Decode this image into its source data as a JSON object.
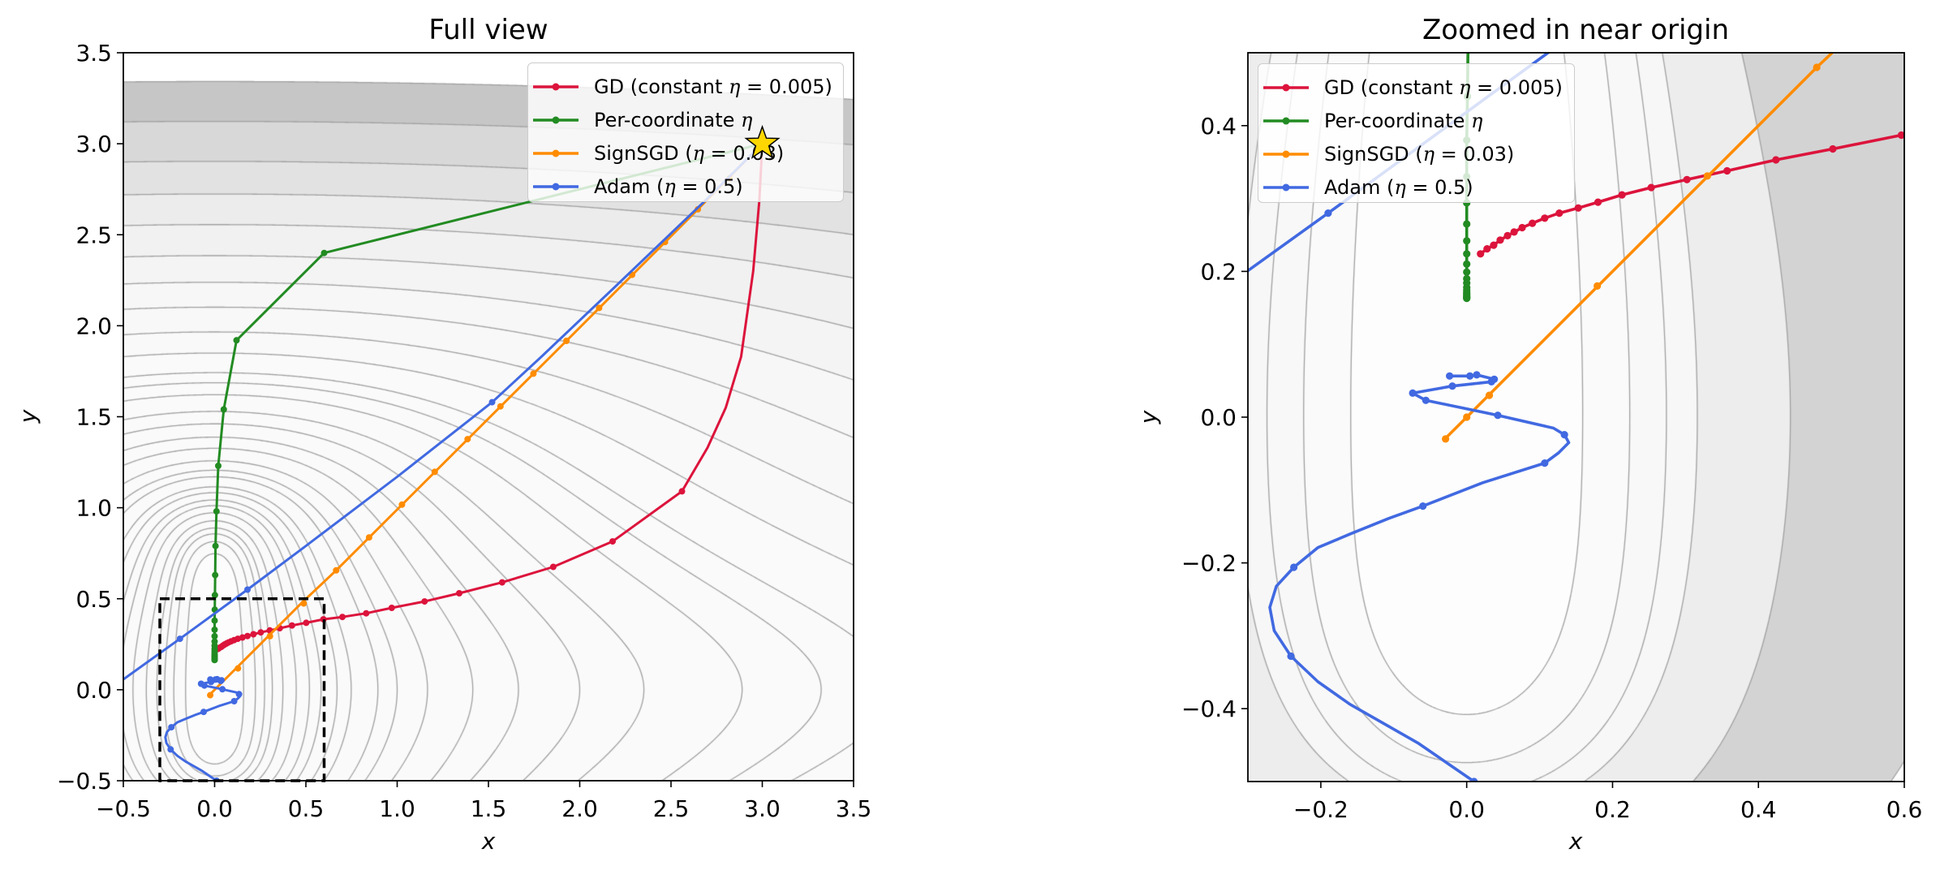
{
  "chart_data": {
    "type": "line",
    "start_point": {
      "x": 3,
      "y": 3,
      "marker": "star",
      "color": "#ffd700",
      "edge_color": "#000000"
    },
    "series": [
      {
        "id": "gd",
        "name": "GD (constant η = 0.005)",
        "color": "#dc143c",
        "path": [
          [
            3,
            3
          ],
          [
            2.984,
            2.69
          ],
          [
            2.95,
            2.3
          ],
          [
            2.884,
            1.83
          ],
          [
            2.8,
            1.55
          ],
          [
            2.7,
            1.33
          ],
          [
            2.56,
            1.09
          ],
          [
            2.18,
            0.815
          ],
          [
            1.855,
            0.675
          ],
          [
            1.575,
            0.59
          ],
          [
            1.34,
            0.53
          ],
          [
            1.15,
            0.485
          ],
          [
            0.97,
            0.45
          ],
          [
            0.83,
            0.42
          ],
          [
            0.7,
            0.4
          ],
          [
            0.596,
            0.387
          ],
          [
            0.502,
            0.368
          ],
          [
            0.424,
            0.353
          ],
          [
            0.357,
            0.338
          ],
          [
            0.302,
            0.326
          ],
          [
            0.253,
            0.315
          ],
          [
            0.213,
            0.305
          ],
          [
            0.18,
            0.295
          ],
          [
            0.153,
            0.287
          ],
          [
            0.127,
            0.28
          ],
          [
            0.107,
            0.273
          ],
          [
            0.09,
            0.266
          ],
          [
            0.076,
            0.26
          ],
          [
            0.065,
            0.254
          ],
          [
            0.056,
            0.249
          ],
          [
            0.046,
            0.243
          ],
          [
            0.037,
            0.236
          ],
          [
            0.028,
            0.231
          ],
          [
            0.019,
            0.224
          ]
        ],
        "markers": [
          [
            2.56,
            1.09
          ],
          [
            2.18,
            0.815
          ],
          [
            1.855,
            0.675
          ],
          [
            1.575,
            0.59
          ],
          [
            1.34,
            0.53
          ],
          [
            1.15,
            0.485
          ],
          [
            0.97,
            0.45
          ],
          [
            0.83,
            0.42
          ],
          [
            0.7,
            0.4
          ],
          [
            0.596,
            0.387
          ],
          [
            0.502,
            0.368
          ],
          [
            0.424,
            0.353
          ],
          [
            0.357,
            0.338
          ],
          [
            0.302,
            0.326
          ],
          [
            0.253,
            0.315
          ],
          [
            0.213,
            0.305
          ],
          [
            0.18,
            0.295
          ],
          [
            0.153,
            0.287
          ],
          [
            0.127,
            0.28
          ],
          [
            0.107,
            0.273
          ],
          [
            0.09,
            0.266
          ],
          [
            0.076,
            0.26
          ],
          [
            0.065,
            0.254
          ],
          [
            0.056,
            0.249
          ],
          [
            0.046,
            0.243
          ],
          [
            0.037,
            0.236
          ],
          [
            0.028,
            0.231
          ],
          [
            0.019,
            0.224
          ]
        ]
      },
      {
        "id": "per-coordinate",
        "name": "Per-coordinate η",
        "color": "#228b22",
        "path": [
          [
            3,
            3
          ],
          [
            0.6,
            2.4
          ],
          [
            0.12,
            1.92
          ],
          [
            0.05,
            1.54
          ],
          [
            0.02,
            1.23
          ],
          [
            0.01,
            0.98
          ],
          [
            0.005,
            0.79
          ],
          [
            0.003,
            0.63
          ],
          [
            0.002,
            0.52
          ],
          [
            0.001,
            0.44
          ],
          [
            0,
            0.38
          ],
          [
            0,
            0.33
          ],
          [
            0,
            0.294
          ],
          [
            0,
            0.265
          ],
          [
            0,
            0.242
          ],
          [
            0,
            0.224
          ],
          [
            0,
            0.21
          ],
          [
            0,
            0.199
          ],
          [
            0,
            0.19
          ],
          [
            0,
            0.184
          ],
          [
            0,
            0.178
          ],
          [
            0,
            0.174
          ],
          [
            0,
            0.171
          ],
          [
            0,
            0.169
          ],
          [
            0,
            0.167
          ],
          [
            0,
            0.165
          ],
          [
            0,
            0.164
          ],
          [
            0,
            0.163
          ]
        ],
        "markers": [
          [
            0.6,
            2.4
          ],
          [
            0.12,
            1.92
          ],
          [
            0.05,
            1.54
          ],
          [
            0.02,
            1.23
          ],
          [
            0.01,
            0.98
          ],
          [
            0.005,
            0.79
          ],
          [
            0.003,
            0.63
          ],
          [
            0.002,
            0.52
          ],
          [
            0.001,
            0.44
          ],
          [
            0,
            0.38
          ],
          [
            0,
            0.33
          ],
          [
            0,
            0.294
          ],
          [
            0,
            0.265
          ],
          [
            0,
            0.242
          ],
          [
            0,
            0.224
          ],
          [
            0,
            0.21
          ],
          [
            0,
            0.199
          ],
          [
            0,
            0.19
          ],
          [
            0,
            0.184
          ],
          [
            0,
            0.178
          ],
          [
            0,
            0.174
          ],
          [
            0,
            0.171
          ],
          [
            0,
            0.169
          ],
          [
            0,
            0.167
          ],
          [
            0,
            0.165
          ],
          [
            0,
            0.164
          ],
          [
            0,
            0.163
          ]
        ]
      },
      {
        "id": "signsgd",
        "name": "SignSGD (η = 0.03)",
        "color": "#ff8c00",
        "path": [
          [
            3,
            3
          ],
          [
            2.647,
            2.64
          ],
          [
            1.927,
            1.917
          ],
          [
            0.666,
            0.656
          ],
          [
            0.48,
            0.48
          ],
          [
            0,
            0
          ],
          [
            -0.03,
            -0.03
          ]
        ],
        "markers_by_panel": {
          "full": [
            [
              2.82,
              2.81
            ],
            [
              2.647,
              2.64
            ],
            [
              2.467,
              2.46
            ],
            [
              2.287,
              2.28
            ],
            [
              2.106,
              2.098
            ],
            [
              1.927,
              1.917
            ],
            [
              1.746,
              1.737
            ],
            [
              1.566,
              1.557
            ],
            [
              1.386,
              1.377
            ],
            [
              1.206,
              1.197
            ],
            [
              1.026,
              1.017
            ],
            [
              0.846,
              0.837
            ],
            [
              0.666,
              0.656
            ],
            [
              0.488,
              0.474
            ],
            [
              0.303,
              0.294
            ],
            [
              0.128,
              0.117
            ],
            [
              -0.024,
              -0.03
            ]
          ],
          "zoom": [
            [
              0.48,
              0.48
            ],
            [
              0.33,
              0.331
            ],
            [
              0.179,
              0.18
            ],
            [
              0.031,
              0.03
            ],
            [
              0,
              0
            ],
            [
              -0.029,
              -0.03
            ]
          ]
        }
      },
      {
        "id": "adam",
        "name": "Adam (η = 0.5)",
        "color": "#4169e1",
        "path": [
          [
            3,
            3
          ],
          [
            2.69,
            2.69
          ],
          [
            2.2,
            2.22
          ],
          [
            1.79,
            1.83
          ],
          [
            1.52,
            1.58
          ],
          [
            1.0,
            1.17
          ],
          [
            0.5,
            0.79
          ],
          [
            0.18,
            0.55
          ],
          [
            -0.19,
            0.28
          ],
          [
            -0.7,
            -0.087
          ],
          [
            -0.85,
            -0.6
          ],
          [
            -0.3,
            -0.85
          ],
          [
            0.1,
            -0.57
          ],
          [
            0.01,
            -0.5
          ],
          [
            -0.067,
            -0.447
          ],
          [
            -0.16,
            -0.394
          ],
          [
            -0.204,
            -0.363
          ],
          [
            -0.241,
            -0.328
          ],
          [
            -0.264,
            -0.293
          ],
          [
            -0.27,
            -0.261
          ],
          [
            -0.261,
            -0.232
          ],
          [
            -0.237,
            -0.206
          ],
          [
            -0.204,
            -0.179
          ],
          [
            -0.159,
            -0.16
          ],
          [
            -0.107,
            -0.139
          ],
          [
            -0.06,
            -0.122
          ],
          [
            0.022,
            -0.09
          ],
          [
            0.107,
            -0.063
          ],
          [
            0.126,
            -0.049
          ],
          [
            0.14,
            -0.035
          ],
          [
            0.134,
            -0.024
          ],
          [
            0.119,
            -0.015
          ],
          [
            0.0426,
            0.0026
          ],
          [
            -0.056,
            0.023
          ],
          [
            -0.074,
            0.033
          ],
          [
            -0.0197,
            0.0426
          ],
          [
            0.034,
            0.0485
          ],
          [
            0.0378,
            0.052
          ],
          [
            0.0137,
            0.058
          ],
          [
            0.0044,
            0.0565
          ],
          [
            -0.0234,
            0.0565
          ]
        ],
        "markers": [
          [
            1.52,
            1.58
          ],
          [
            0.18,
            0.55
          ],
          [
            -0.19,
            0.28
          ],
          [
            0.01,
            -0.5
          ],
          [
            -0.241,
            -0.328
          ],
          [
            -0.237,
            -0.206
          ],
          [
            -0.06,
            -0.122
          ],
          [
            0.107,
            -0.063
          ],
          [
            0.134,
            -0.024
          ],
          [
            0.0426,
            0.0026
          ],
          [
            -0.056,
            0.023
          ],
          [
            -0.074,
            0.033
          ],
          [
            -0.0197,
            0.0426
          ],
          [
            0.034,
            0.0485
          ],
          [
            0.0378,
            0.052
          ],
          [
            0.0137,
            0.058
          ],
          [
            0.0044,
            0.0565
          ],
          [
            -0.0234,
            0.0565
          ]
        ]
      }
    ],
    "contour": {
      "function": "x^2*(1+b*y^2) + k*|y-y0|^p",
      "b": 1.52,
      "k": 0.8,
      "y0": 0.17,
      "p": 6.3,
      "line_color": "#a0a0a0"
    },
    "panels": [
      {
        "id": "full",
        "title": "Full view",
        "xlabel": "x",
        "ylabel": "y",
        "xlim": [
          -0.5,
          3.5
        ],
        "ylim": [
          -0.5,
          3.5
        ],
        "xticks": [
          -0.5,
          0,
          0.5,
          1,
          1.5,
          2,
          2.5,
          3,
          3.5
        ],
        "xtick_labels": [
          "−0.5",
          "0.0",
          "0.5",
          "1.0",
          "1.5",
          "2.0",
          "2.5",
          "3.0",
          "3.5"
        ],
        "yticks": [
          -0.5,
          0,
          0.5,
          1,
          1.5,
          2,
          2.5,
          3,
          3.5
        ],
        "ytick_labels": [
          "−0.5",
          "0.0",
          "0.5",
          "1.0",
          "1.5",
          "2.0",
          "2.5",
          "3.0",
          "3.5"
        ],
        "legend_position": "top-right",
        "zoom_box": {
          "xlim": [
            -0.3,
            0.6
          ],
          "ylim": [
            -0.5,
            0.5
          ]
        },
        "contour_levels": [
          0.0253,
          0.05,
          0.075,
          0.1,
          0.14,
          0.2,
          0.27,
          0.34,
          0.45,
          0.56,
          0.8,
          1.0,
          1.36,
          2.0,
          2.77,
          4.0,
          5.53,
          8.35,
          11.04,
          13.84,
          21,
          32,
          50.7,
          78,
          120,
          191.5,
          294,
          451,
          734,
          1152
        ],
        "fill_colors": [
          "#fcfcfc",
          "#fafafa",
          "#fafafa",
          "#fafafa",
          "#fafafa",
          "#fafafa",
          "#fafafa",
          "#fafafa",
          "#fafafa",
          "#fafafa",
          "#fafafa",
          "#fafafa",
          "#fafafa",
          "#fafafa",
          "#fafafa",
          "#fafafa",
          "#fafafa",
          "#fafafa",
          "#fafafa",
          "#fafafa",
          "#fafafa",
          "#f9f9f9",
          "#f8f8f8",
          "#f7f7f7",
          "#f4f4f4",
          "#f1f1f1",
          "#ececec",
          "#e2e2e2",
          "#d8d8d8",
          "#c6c6c6"
        ]
      },
      {
        "id": "zoom",
        "title": "Zoomed in near origin",
        "xlabel": "x",
        "ylabel": "y",
        "xlim": [
          -0.3,
          0.6
        ],
        "ylim": [
          -0.5,
          0.5
        ],
        "xticks": [
          -0.2,
          0,
          0.2,
          0.4,
          0.6
        ],
        "xtick_labels": [
          "−0.2",
          "0.0",
          "0.2",
          "0.4",
          "0.6"
        ],
        "yticks": [
          -0.4,
          -0.2,
          0,
          0.2,
          0.4
        ],
        "ytick_labels": [
          "−0.4",
          "−0.2",
          "0.0",
          "0.2",
          "0.4"
        ],
        "legend_position": "top-left",
        "contour_levels": [
          0.0253,
          0.05,
          0.075,
          0.1,
          0.197,
          0.531
        ],
        "fill_colors": [
          "#fdfdfd",
          "#fafafa",
          "#f8f8f8",
          "#f7f7f7",
          "#ededed",
          "#d3d3d3"
        ]
      }
    ]
  }
}
